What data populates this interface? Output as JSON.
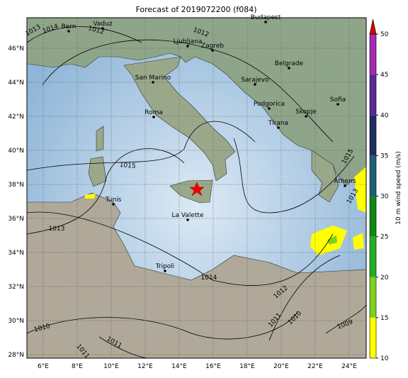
{
  "title": "Forecast of 2019072200 (f084)",
  "lon_ticks": [
    {
      "value": 6,
      "label": "6°E"
    },
    {
      "value": 8,
      "label": "8°E"
    },
    {
      "value": 10,
      "label": "10°E"
    },
    {
      "value": 12,
      "label": "12°E"
    },
    {
      "value": 14,
      "label": "14°E"
    },
    {
      "value": 16,
      "label": "16°E"
    },
    {
      "value": 18,
      "label": "18°E"
    },
    {
      "value": 20,
      "label": "20°E"
    },
    {
      "value": 22,
      "label": "22°E"
    },
    {
      "value": 24,
      "label": "24°E"
    }
  ],
  "lat_ticks": [
    {
      "value": 28,
      "label": "28°N"
    },
    {
      "value": 30,
      "label": "30°N"
    },
    {
      "value": 32,
      "label": "32°N"
    },
    {
      "value": 34,
      "label": "34°N"
    },
    {
      "value": 36,
      "label": "36°N"
    },
    {
      "value": 38,
      "label": "38°N"
    },
    {
      "value": 40,
      "label": "40°N"
    },
    {
      "value": 42,
      "label": "42°N"
    },
    {
      "value": 44,
      "label": "44°N"
    },
    {
      "value": 46,
      "label": "46°N"
    }
  ],
  "cities": [
    "Bern",
    "Vaduz",
    "Budapest",
    "Ljubljana",
    "Zagreb",
    "San Marino",
    "Sarajevo",
    "Belgrade",
    "Roma",
    "Podgorica",
    "Skopje",
    "Tirana",
    "Sofia",
    "Athens",
    "Tunis",
    "La Valette",
    "Tripoli"
  ],
  "isobar_labels": [
    "1013",
    "1014",
    "1012",
    "1012",
    "1015",
    "1015",
    "1013",
    "1013",
    "1014",
    "1012",
    "1011",
    "1010",
    "1009",
    "1010",
    "1011",
    "1011"
  ],
  "colorbar": {
    "label": "10 m wind speed (m/s)",
    "lim": [
      10,
      50
    ],
    "ticks": [
      10,
      15,
      20,
      25,
      30,
      35,
      40,
      45,
      50
    ],
    "colors": [
      "#ffff00",
      "#7fd020",
      "#22b022",
      "#118811",
      "#1f5f78",
      "#1f2e60",
      "#5a2a9a",
      "#a52ab5"
    ],
    "extend_color": "#dd0000"
  }
}
